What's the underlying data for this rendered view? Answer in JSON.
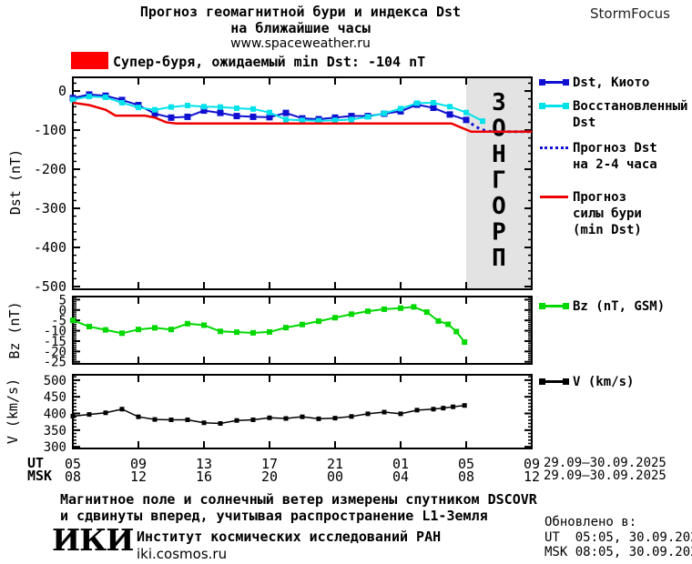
{
  "header": {
    "title_line1": "Прогноз геомагнитной бури и индекса Dst",
    "title_line2": "на ближайшие часы",
    "website": "www.spaceweather.ru",
    "brand": "StormFocus"
  },
  "warning": {
    "text": "Супер-буря, ожидаемый min Dst: -104 nT",
    "box_color": "#ff0000"
  },
  "colors": {
    "dst_kyoto": "#1010d2",
    "dst_restored": "#00e2ea",
    "dst_forecast": "#1010d2",
    "storm_forecast": "#ee0000",
    "bz": "#00d800",
    "v": "#000000",
    "warning_box": "#ff0000",
    "forecast_region_bg": "#e3e3e3",
    "forecast_region_text": "#c7c7c7"
  },
  "legend": {
    "dst_kyoto": [
      "Dst, Киото"
    ],
    "dst_restored": [
      "Восстановленный",
      "Dst"
    ],
    "dst_forecast": [
      "Прогноз Dst",
      "на 2-4 часа"
    ],
    "storm_forecast": [
      "Прогноз",
      "силы бури",
      "(min Dst)"
    ],
    "bz": [
      "Bz (nT, GSM)"
    ],
    "v": [
      "V (km/s)"
    ]
  },
  "xaxis": {
    "ut_label": "UT",
    "msk_label": "MSK",
    "ut_ticks": [
      "05",
      "09",
      "13",
      "17",
      "21",
      "01",
      "05",
      "09"
    ],
    "msk_ticks": [
      "08",
      "12",
      "16",
      "20",
      "00",
      "04",
      "08",
      "12"
    ],
    "ut_date_range": "29.09–30.09.2025",
    "msk_date_range": "29.09–30.09.2025"
  },
  "chart_data": [
    {
      "type": "line",
      "name": "dst",
      "ylabel": "Dst (nT)",
      "ylim": [
        -507,
        35
      ],
      "yticks": [
        0,
        -100,
        -200,
        -300,
        -400,
        -500
      ],
      "yminor": 20,
      "xlim": [
        5,
        33
      ],
      "xticks": [
        5,
        9,
        13,
        17,
        21,
        25,
        29,
        33
      ],
      "forecast_region": {
        "x_from": 29,
        "x_to": 33,
        "label": "ПРОГНОЗ"
      },
      "series": [
        {
          "name": "Dst, Киото",
          "color_key": "dst_kyoto",
          "marker": true,
          "marker_size": 7,
          "width": 2,
          "points": [
            [
              5,
              -18
            ],
            [
              6,
              -9
            ],
            [
              7,
              -12
            ],
            [
              8,
              -23
            ],
            [
              9,
              -36
            ],
            [
              10,
              -58
            ],
            [
              11,
              -68
            ],
            [
              12,
              -66
            ],
            [
              13,
              -50
            ],
            [
              14,
              -56
            ],
            [
              15,
              -64
            ],
            [
              16,
              -66
            ],
            [
              17,
              -67
            ],
            [
              18,
              -56
            ],
            [
              19,
              -70
            ],
            [
              20,
              -72
            ],
            [
              21,
              -68
            ],
            [
              22,
              -64
            ],
            [
              23,
              -64
            ],
            [
              24,
              -58
            ],
            [
              25,
              -52
            ],
            [
              26,
              -35
            ],
            [
              27,
              -43
            ],
            [
              28,
              -60
            ],
            [
              29,
              -74
            ]
          ]
        },
        {
          "name": "Восстановленный Dst",
          "color_key": "dst_restored",
          "marker": true,
          "marker_size": 6,
          "width": 2,
          "points": [
            [
              5,
              -22
            ],
            [
              6,
              -14
            ],
            [
              7,
              -16
            ],
            [
              8,
              -30
            ],
            [
              9,
              -42
            ],
            [
              10,
              -48
            ],
            [
              11,
              -41
            ],
            [
              12,
              -37
            ],
            [
              13,
              -40
            ],
            [
              14,
              -41
            ],
            [
              15,
              -44
            ],
            [
              16,
              -46
            ],
            [
              17,
              -55
            ],
            [
              18,
              -73
            ],
            [
              19,
              -75
            ],
            [
              20,
              -76
            ],
            [
              21,
              -75
            ],
            [
              22,
              -73
            ],
            [
              23,
              -66
            ],
            [
              24,
              -57
            ],
            [
              25,
              -45
            ],
            [
              26,
              -31
            ],
            [
              27,
              -30
            ],
            [
              28,
              -40
            ],
            [
              29,
              -55
            ],
            [
              30,
              -77
            ]
          ]
        },
        {
          "name": "Прогноз Dst на 2-4 часа",
          "color_key": "dst_forecast",
          "dotted": true,
          "width": 3,
          "points": [
            [
              29,
              -74
            ],
            [
              29.4,
              -86
            ],
            [
              29.8,
              -96
            ],
            [
              30.2,
              -102
            ],
            [
              30.6,
              -104
            ],
            [
              33,
              -104
            ]
          ]
        },
        {
          "name": "Прогноз силы бури (min Dst)",
          "color_key": "storm_forecast",
          "width": 2.5,
          "points": [
            [
              5,
              -30
            ],
            [
              6,
              -36
            ],
            [
              7,
              -48
            ],
            [
              7.6,
              -63
            ],
            [
              9.4,
              -63
            ],
            [
              10,
              -68
            ],
            [
              10.7,
              -80
            ],
            [
              11.3,
              -83
            ],
            [
              28.1,
              -83
            ],
            [
              29.3,
              -104
            ],
            [
              33,
              -104
            ]
          ]
        }
      ]
    },
    {
      "type": "line",
      "name": "bz",
      "ylabel": "Bz (nT)",
      "ylim": [
        -26,
        6.5
      ],
      "yticks": [
        5,
        0,
        -5,
        -10,
        -15,
        -20,
        -25
      ],
      "yminor": 1,
      "xlim": [
        5,
        33
      ],
      "xticks": [
        5,
        9,
        13,
        17,
        21,
        25,
        29,
        33
      ],
      "series": [
        {
          "name": "Bz (nT, GSM)",
          "color_key": "bz",
          "marker": true,
          "marker_size": 6,
          "width": 2,
          "points": [
            [
              5,
              -5
            ],
            [
              6,
              -8
            ],
            [
              7,
              -9.6
            ],
            [
              8,
              -11.2
            ],
            [
              9,
              -9.4
            ],
            [
              10,
              -8.6
            ],
            [
              11,
              -9.4
            ],
            [
              12,
              -6.6
            ],
            [
              13,
              -7.3
            ],
            [
              14,
              -10.3
            ],
            [
              15,
              -10.7
            ],
            [
              16,
              -11
            ],
            [
              17,
              -10.6
            ],
            [
              18,
              -8.5
            ],
            [
              19,
              -7
            ],
            [
              20,
              -5.4
            ],
            [
              21,
              -3.7
            ],
            [
              22,
              -2
            ],
            [
              23,
              -0.6
            ],
            [
              24,
              0.4
            ],
            [
              25,
              0.9
            ],
            [
              25.8,
              1.5
            ],
            [
              26.6,
              -1
            ],
            [
              27.3,
              -5.3
            ],
            [
              27.9,
              -6.9
            ],
            [
              28.4,
              -10.4
            ],
            [
              28.9,
              -15.5
            ]
          ]
        }
      ]
    },
    {
      "type": "line",
      "name": "v",
      "ylabel": "V (km/s)",
      "ylim": [
        295,
        516
      ],
      "yticks": [
        500,
        450,
        400,
        350,
        300
      ],
      "yminor": 10,
      "xlim": [
        5,
        33
      ],
      "xticks": [
        5,
        9,
        13,
        17,
        21,
        25,
        29,
        33
      ],
      "series": [
        {
          "name": "V (km/s)",
          "color_key": "v",
          "marker": true,
          "marker_size": 5,
          "width": 1.5,
          "points": [
            [
              5,
              392
            ],
            [
              6,
              397
            ],
            [
              7,
              402
            ],
            [
              8,
              413
            ],
            [
              9,
              390
            ],
            [
              10,
              382
            ],
            [
              11,
              381
            ],
            [
              12,
              381
            ],
            [
              13,
              372
            ],
            [
              14,
              370
            ],
            [
              15,
              379
            ],
            [
              16,
              381
            ],
            [
              17,
              387
            ],
            [
              18,
              385
            ],
            [
              19,
              390
            ],
            [
              20,
              384
            ],
            [
              21,
              386
            ],
            [
              22,
              391
            ],
            [
              23,
              399
            ],
            [
              24,
              404
            ],
            [
              25,
              399
            ],
            [
              26,
              410
            ],
            [
              27,
              413
            ],
            [
              27.6,
              416
            ],
            [
              28.2,
              420
            ],
            [
              28.9,
              424
            ]
          ]
        }
      ]
    }
  ],
  "footer": {
    "line1": "Магнитное поле и солнечный ветер измерены спутником DSCOVR",
    "line2": "и сдвинуты вперед, учитывая распространение L1-Земля",
    "logo_text": "ИКИ",
    "institute": "Институт космических исследований РАН",
    "url": "iki.cosmos.ru",
    "updated": {
      "label": "Обновлено в:",
      "ut": "UT  05:05, 30.09.2025",
      "msk": "MSK 08:05, 30.09.2025"
    }
  }
}
